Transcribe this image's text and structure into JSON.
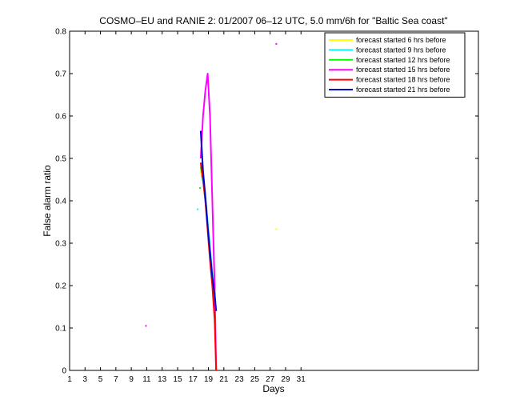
{
  "chart_data": {
    "type": "line",
    "title": "COSMO–EU and RANIE 2: 01/2007 06–12 UTC, 5.0 mm/6h for \"Baltic Sea coast\"",
    "xlabel": "Days",
    "ylabel": "False alarm ratio",
    "xlim": [
      1,
      54
    ],
    "ylim": [
      0,
      0.8
    ],
    "xticks": [
      1,
      3,
      5,
      7,
      9,
      11,
      13,
      15,
      17,
      19,
      21,
      23,
      25,
      27,
      29,
      31
    ],
    "yticks": [
      0,
      0.1,
      0.2,
      0.3,
      0.4,
      0.5,
      0.6,
      0.7,
      0.8
    ],
    "grid": false,
    "legend_position": "top-right",
    "series": [
      {
        "name": "forecast started 6 hrs before",
        "color": "#ffff00",
        "x": [
          18.0,
          18.3,
          18.6,
          18.9,
          19.2,
          19.5,
          19.8
        ],
        "y": [
          0.47,
          0.45,
          0.4,
          0.34,
          0.28,
          0.22,
          0.15
        ],
        "points": [
          {
            "x": 27.8,
            "y": 0.333
          }
        ]
      },
      {
        "name": "forecast started 9 hrs before",
        "color": "#00ffff",
        "x": [
          18.1,
          18.4,
          18.7,
          19.0,
          19.3,
          19.6,
          19.9
        ],
        "y": [
          0.46,
          0.44,
          0.39,
          0.33,
          0.27,
          0.21,
          0.16
        ],
        "points": [
          {
            "x": 17.6,
            "y": 0.38
          }
        ]
      },
      {
        "name": "forecast started 12 hrs before",
        "color": "#00ff00",
        "x": [
          18.0,
          18.3,
          18.6,
          18.9,
          19.2,
          19.5,
          19.8
        ],
        "y": [
          0.48,
          0.45,
          0.4,
          0.34,
          0.27,
          0.21,
          0.16
        ],
        "points": [
          {
            "x": 17.9,
            "y": 0.43
          }
        ]
      },
      {
        "name": "forecast started 15 hrs before",
        "color": "#ff00ff",
        "x": [
          18.0,
          18.3,
          18.6,
          18.9,
          19.2,
          19.5,
          19.8,
          20.0
        ],
        "y": [
          0.5,
          0.6,
          0.66,
          0.7,
          0.6,
          0.4,
          0.2,
          0.0
        ],
        "points": [
          {
            "x": 10.9,
            "y": 0.105
          },
          {
            "x": 27.8,
            "y": 0.77
          }
        ]
      },
      {
        "name": "forecast started 18 hrs before",
        "color": "#ff0000",
        "x": [
          18.0,
          18.3,
          18.6,
          18.9,
          19.2,
          19.5,
          19.8,
          20.0
        ],
        "y": [
          0.49,
          0.45,
          0.4,
          0.33,
          0.26,
          0.2,
          0.12,
          0.0
        ],
        "points": []
      },
      {
        "name": "forecast started 21 hrs before",
        "color": "#0000cc",
        "x": [
          18.0,
          18.3,
          18.6,
          18.9,
          19.2,
          19.5,
          19.8,
          20.0
        ],
        "y": [
          0.565,
          0.47,
          0.41,
          0.34,
          0.28,
          0.22,
          0.18,
          0.14
        ],
        "points": []
      }
    ]
  }
}
